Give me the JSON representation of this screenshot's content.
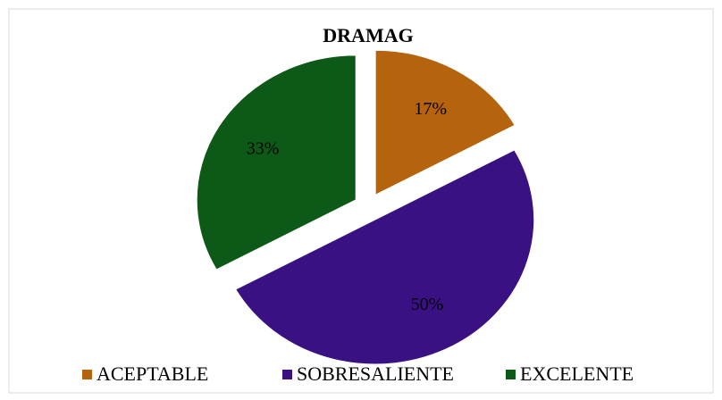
{
  "chart_data": {
    "type": "pie",
    "title": "DRAMAG",
    "categories": [
      "ACEPTABLE",
      "SOBRESALIENTE",
      "EXCELENTE"
    ],
    "values": [
      17,
      50,
      33
    ],
    "value_labels": [
      "17%",
      "50%",
      "33%"
    ],
    "colors": [
      "#b5630c",
      "#3a1182",
      "#0d5a18"
    ],
    "legend": "bottom"
  }
}
